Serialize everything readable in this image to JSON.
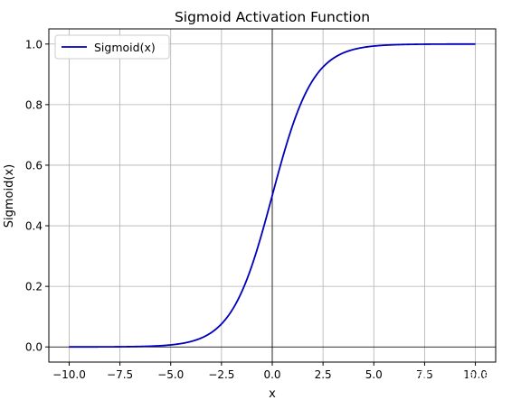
{
  "chart_data": {
    "type": "line",
    "title": "Sigmoid Activation Function",
    "xlabel": "x",
    "ylabel": "Sigmoid(x)",
    "xlim": [
      -11,
      11
    ],
    "ylim": [
      -0.05,
      1.05
    ],
    "xticks": [
      -10.0,
      -7.5,
      -5.0,
      -2.5,
      0.0,
      2.5,
      5.0,
      7.5,
      10.0
    ],
    "xtick_labels": [
      "−10.0",
      "−7.5",
      "−5.0",
      "−2.5",
      "0.0",
      "2.5",
      "5.0",
      "7.5",
      "10.0"
    ],
    "yticks": [
      0.0,
      0.2,
      0.4,
      0.6,
      0.8,
      1.0
    ],
    "ytick_labels": [
      "0.0",
      "0.2",
      "0.4",
      "0.6",
      "0.8",
      "1.0"
    ],
    "grid": true,
    "reference_lines": {
      "horizontal": 0,
      "vertical": 0
    },
    "legend_position": "upper-left",
    "series": [
      {
        "name": "Sigmoid(x)",
        "color": "#0000bb",
        "function": "sigmoid",
        "x_range": [
          -10,
          10
        ],
        "x": [
          -10,
          -8,
          -6,
          -5,
          -4,
          -3,
          -2.5,
          -2,
          -1,
          0,
          1,
          2,
          2.5,
          3,
          4,
          5,
          6,
          8,
          10
        ],
        "y": [
          0.0,
          0.0003,
          0.0025,
          0.0067,
          0.018,
          0.0474,
          0.0759,
          0.1192,
          0.2689,
          0.5,
          0.7311,
          0.8808,
          0.9241,
          0.9526,
          0.982,
          0.9933,
          0.9975,
          0.9997,
          1.0
        ]
      }
    ]
  },
  "watermark": {
    "text": "知乎 @SpaceML"
  }
}
